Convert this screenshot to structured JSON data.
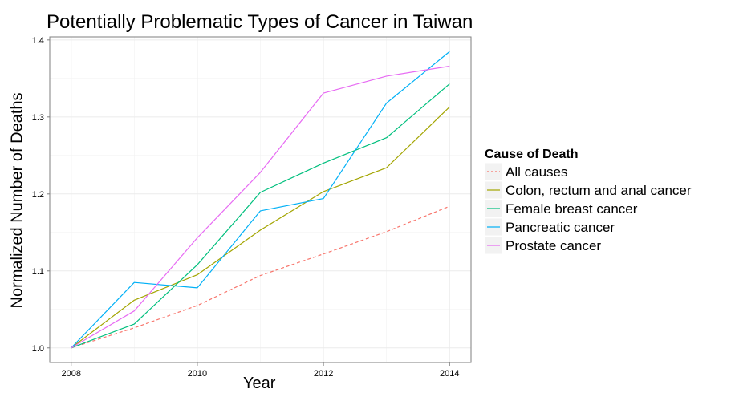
{
  "chart_data": {
    "type": "line",
    "title": "Potentially Problematic Types of Cancer in Taiwan",
    "xlabel": "Year",
    "ylabel": "Normalized Number of Deaths",
    "x": [
      2008,
      2009,
      2010,
      2011,
      2012,
      2013,
      2014
    ],
    "x_ticks": [
      2008,
      2010,
      2012,
      2014
    ],
    "y_ticks": [
      1.0,
      1.1,
      1.2,
      1.3,
      1.4
    ],
    "xlim": [
      2007.66,
      2014.34
    ],
    "ylim": [
      0.981,
      1.404
    ],
    "grid": true,
    "legend": {
      "title": "Cause of Death",
      "position": "right"
    },
    "series": [
      {
        "name": "All causes",
        "color": "#F8766D",
        "dashed": true,
        "values": [
          1.0,
          1.026,
          1.055,
          1.094,
          1.122,
          1.151,
          1.184
        ]
      },
      {
        "name": "Colon, rectum and anal cancer",
        "color": "#A3A500",
        "dashed": false,
        "values": [
          1.0,
          1.062,
          1.095,
          1.153,
          1.203,
          1.234,
          1.313
        ]
      },
      {
        "name": "Female breast cancer",
        "color": "#00BF7D",
        "dashed": false,
        "values": [
          1.0,
          1.031,
          1.108,
          1.202,
          1.24,
          1.273,
          1.343
        ]
      },
      {
        "name": "Pancreatic cancer",
        "color": "#00B0F6",
        "dashed": false,
        "values": [
          1.0,
          1.085,
          1.078,
          1.178,
          1.194,
          1.318,
          1.385
        ]
      },
      {
        "name": "Prostate cancer",
        "color": "#E76BF3",
        "dashed": false,
        "values": [
          1.0,
          1.048,
          1.143,
          1.228,
          1.331,
          1.353,
          1.366
        ]
      }
    ]
  }
}
